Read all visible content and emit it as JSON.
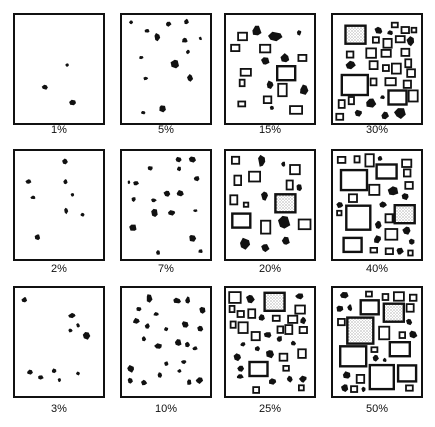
{
  "diagram": {
    "panels": [
      {
        "label": "1%",
        "value": 1
      },
      {
        "label": "5%",
        "value": 5
      },
      {
        "label": "15%",
        "value": 15
      },
      {
        "label": "30%",
        "value": 30
      },
      {
        "label": "2%",
        "value": 2
      },
      {
        "label": "7%",
        "value": 7
      },
      {
        "label": "20%",
        "value": 20
      },
      {
        "label": "40%",
        "value": 40
      },
      {
        "label": "3%",
        "value": 3
      },
      {
        "label": "10%",
        "value": 10
      },
      {
        "label": "25%",
        "value": 25
      },
      {
        "label": "50%",
        "value": 50
      }
    ],
    "ink_color": "#111111",
    "stipple_color": "#bdbdbd"
  }
}
